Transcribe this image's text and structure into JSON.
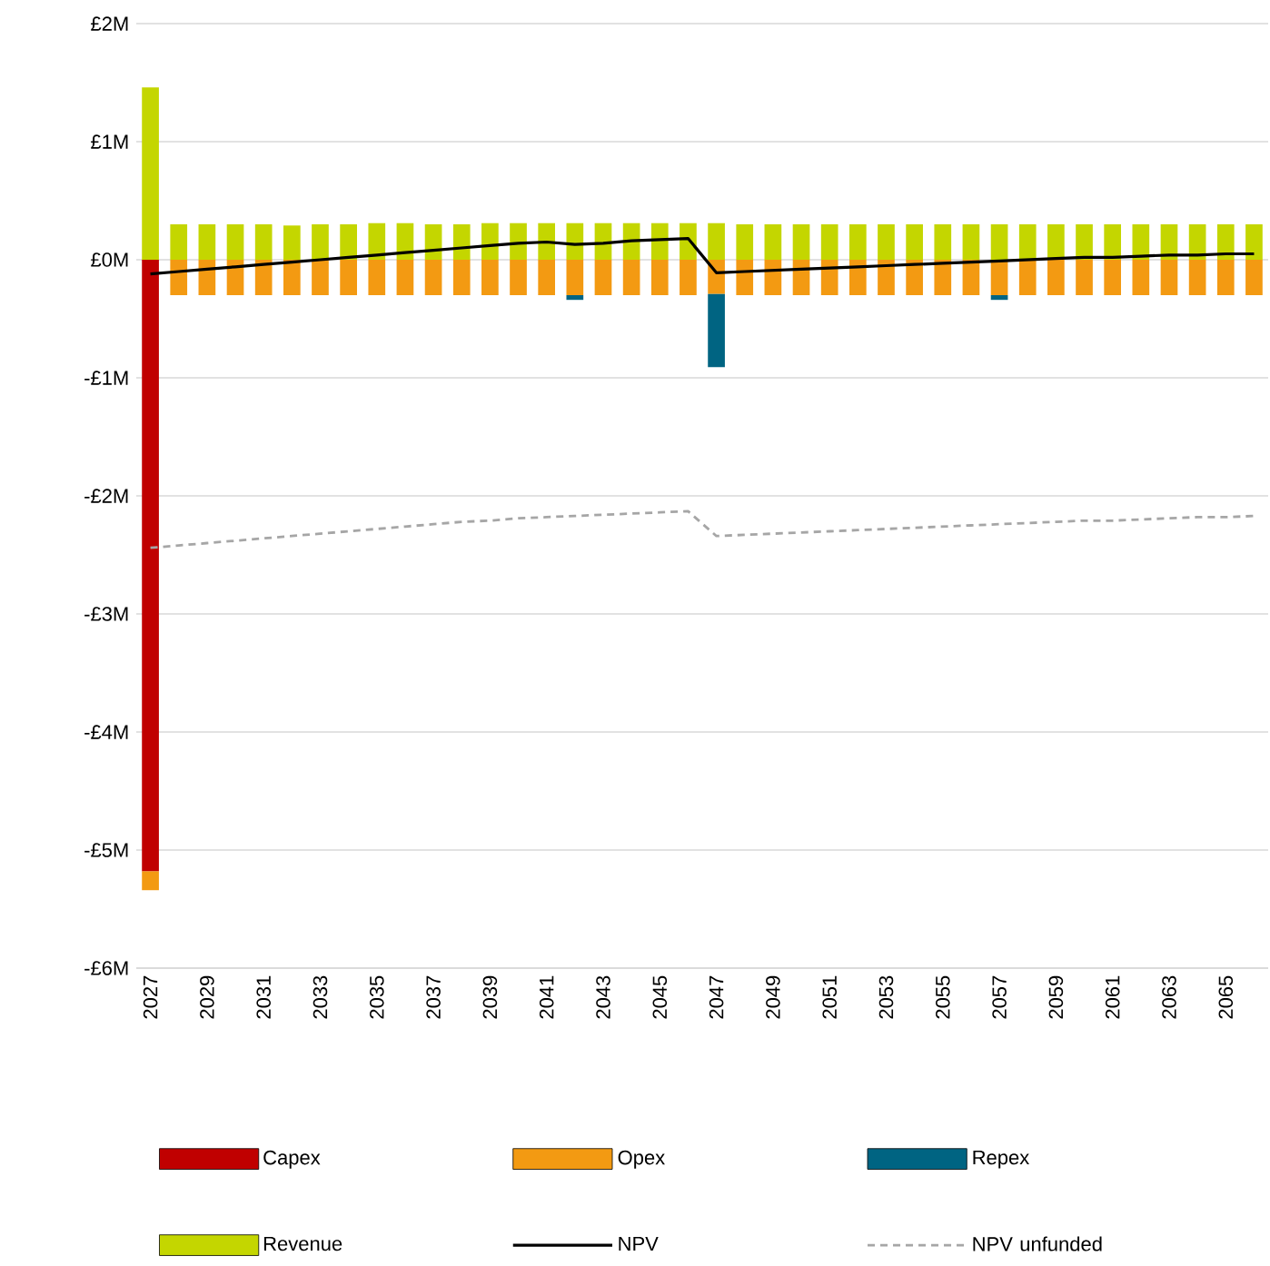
{
  "chart_data": {
    "type": "bar",
    "stacked": true,
    "categories": [
      "2027",
      null,
      "2029",
      null,
      "2031",
      null,
      "2033",
      null,
      "2035",
      null,
      "2037",
      null,
      "2039",
      null,
      "2041",
      null,
      "2043",
      null,
      "2045",
      null,
      "2047",
      null,
      "2049",
      null,
      "2051",
      null,
      "2053",
      null,
      "2055",
      null,
      "2057",
      null,
      "2059",
      null,
      "2061",
      null,
      "2063",
      null,
      "2065",
      null
    ],
    "series": [
      {
        "name": "Capex",
        "color": "#c00000",
        "values": [
          -5.18,
          null,
          null,
          null,
          null,
          null,
          null,
          null,
          null,
          null,
          null,
          null,
          null,
          null,
          null,
          null,
          null,
          null,
          null,
          null,
          null,
          null,
          null,
          null,
          null,
          null,
          null,
          null,
          null,
          null,
          null,
          null,
          null,
          null,
          null,
          null,
          null,
          null,
          null,
          null
        ]
      },
      {
        "name": "Opex",
        "color": "#f39a12",
        "values": [
          -0.16,
          -0.3,
          -0.3,
          -0.3,
          -0.3,
          -0.3,
          -0.3,
          -0.3,
          -0.3,
          -0.3,
          -0.3,
          -0.3,
          -0.3,
          -0.3,
          -0.3,
          -0.3,
          -0.3,
          -0.3,
          -0.3,
          -0.3,
          -0.29,
          -0.3,
          -0.3,
          -0.3,
          -0.3,
          -0.3,
          -0.3,
          -0.3,
          -0.3,
          -0.3,
          -0.3,
          -0.3,
          -0.3,
          -0.3,
          -0.3,
          -0.3,
          -0.3,
          -0.3,
          -0.3,
          -0.3
        ]
      },
      {
        "name": "Repex",
        "color": "#006482",
        "values": [
          null,
          null,
          null,
          null,
          null,
          null,
          null,
          null,
          null,
          null,
          null,
          null,
          null,
          null,
          null,
          -0.04,
          null,
          null,
          null,
          null,
          -0.62,
          null,
          null,
          null,
          null,
          null,
          null,
          null,
          null,
          null,
          -0.04,
          null,
          null,
          null,
          null,
          null,
          null,
          null,
          null,
          null
        ]
      },
      {
        "name": "Revenue",
        "color": "#c4d600",
        "values": [
          1.46,
          0.3,
          0.3,
          0.3,
          0.3,
          0.29,
          0.3,
          0.3,
          0.31,
          0.31,
          0.3,
          0.3,
          0.31,
          0.31,
          0.31,
          0.31,
          0.31,
          0.31,
          0.31,
          0.31,
          0.31,
          0.3,
          0.3,
          0.3,
          0.3,
          0.3,
          0.3,
          0.3,
          0.3,
          0.3,
          0.3,
          0.3,
          0.3,
          0.3,
          0.3,
          0.3,
          0.3,
          0.3,
          0.3,
          0.3
        ]
      },
      {
        "name": "NPV",
        "type": "line",
        "color": "#000000",
        "line_style": "solid",
        "values": [
          -0.12,
          -0.1,
          -0.08,
          -0.06,
          -0.04,
          -0.02,
          0.0,
          0.02,
          0.04,
          0.06,
          0.08,
          0.1,
          0.12,
          0.14,
          0.15,
          0.13,
          0.14,
          0.16,
          0.17,
          0.18,
          -0.11,
          -0.1,
          -0.09,
          -0.08,
          -0.07,
          -0.06,
          -0.05,
          -0.04,
          -0.03,
          -0.02,
          -0.01,
          0.0,
          0.01,
          0.02,
          0.02,
          0.03,
          0.04,
          0.04,
          0.05,
          0.05
        ]
      },
      {
        "name": "NPV unfunded",
        "type": "line",
        "color": "#a6a6a6",
        "line_style": "dashed",
        "values": [
          -2.44,
          -2.42,
          -2.4,
          -2.38,
          -2.36,
          -2.34,
          -2.32,
          -2.3,
          -2.28,
          -2.26,
          -2.24,
          -2.22,
          -2.21,
          -2.19,
          -2.18,
          -2.17,
          -2.16,
          -2.15,
          -2.14,
          -2.13,
          -2.34,
          -2.33,
          -2.32,
          -2.31,
          -2.3,
          -2.29,
          -2.28,
          -2.27,
          -2.26,
          -2.25,
          -2.24,
          -2.23,
          -2.22,
          -2.21,
          -2.21,
          -2.2,
          -2.19,
          -2.18,
          -2.18,
          -2.17
        ]
      }
    ],
    "ylim": [
      -6,
      2
    ],
    "yticks": [
      {
        "value": -6,
        "label": "-£6M"
      },
      {
        "value": -5,
        "label": "-£5M"
      },
      {
        "value": -4,
        "label": "-£4M"
      },
      {
        "value": -3,
        "label": "-£3M"
      },
      {
        "value": -2,
        "label": "-£2M"
      },
      {
        "value": -1,
        "label": "-£1M"
      },
      {
        "value": 0,
        "label": "£0M"
      },
      {
        "value": 1,
        "label": "£1M"
      },
      {
        "value": 2,
        "label": "£2M"
      }
    ],
    "grid": "y",
    "legend": "bottom"
  }
}
